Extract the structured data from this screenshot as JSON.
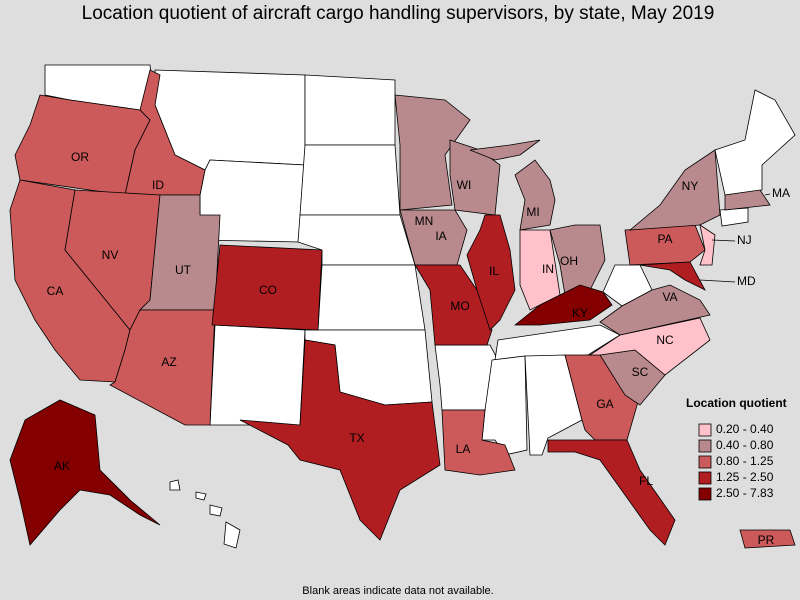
{
  "title": "Location quotient of aircraft cargo handling supervisors, by state, May 2019",
  "note": "Blank areas indicate data not available.",
  "legend": {
    "title": "Location quotient",
    "classes": [
      {
        "label": "0.20 - 0.40",
        "color": "#ffc2cb"
      },
      {
        "label": "0.40 - 0.80",
        "color": "#b98a8d"
      },
      {
        "label": "0.80 - 1.25",
        "color": "#cd5a5a"
      },
      {
        "label": "1.25 - 2.50",
        "color": "#b01e22"
      },
      {
        "label": "2.50 - 7.83",
        "color": "#840000"
      }
    ]
  },
  "states": [
    {
      "label": "OR",
      "color": "#cd5a5a"
    },
    {
      "label": "ID",
      "color": "#cd5a5a"
    },
    {
      "label": "CA",
      "color": "#cd5a5a"
    },
    {
      "label": "NV",
      "color": "#cd5a5a"
    },
    {
      "label": "UT",
      "color": "#b98a8d"
    },
    {
      "label": "AZ",
      "color": "#cd5a5a"
    },
    {
      "label": "CO",
      "color": "#b01e22"
    },
    {
      "label": "TX",
      "color": "#b01e22"
    },
    {
      "label": "MN",
      "color": "#b98a8d"
    },
    {
      "label": "IA",
      "color": "#b98a8d"
    },
    {
      "label": "MO",
      "color": "#b01e22"
    },
    {
      "label": "WI",
      "color": "#b98a8d"
    },
    {
      "label": "IL",
      "color": "#b01e22"
    },
    {
      "label": "MI",
      "color": "#b98a8d"
    },
    {
      "label": "IN",
      "color": "#ffc2cb"
    },
    {
      "label": "OH",
      "color": "#b98a8d"
    },
    {
      "label": "KY",
      "color": "#840000"
    },
    {
      "label": "LA",
      "color": "#cd5a5a"
    },
    {
      "label": "GA",
      "color": "#cd5a5a"
    },
    {
      "label": "FL",
      "color": "#b01e22"
    },
    {
      "label": "SC",
      "color": "#b98a8d"
    },
    {
      "label": "NC",
      "color": "#ffc2cb"
    },
    {
      "label": "VA",
      "color": "#b98a8d"
    },
    {
      "label": "PA",
      "color": "#cd5a5a"
    },
    {
      "label": "NY",
      "color": "#b98a8d"
    },
    {
      "label": "MD",
      "color": "#b01e22"
    },
    {
      "label": "NJ",
      "color": "#ffc2cb"
    },
    {
      "label": "MA",
      "color": "#b98a8d"
    },
    {
      "label": "AK",
      "color": "#840000"
    },
    {
      "label": "PR",
      "color": "#cd5a5a"
    }
  ]
}
